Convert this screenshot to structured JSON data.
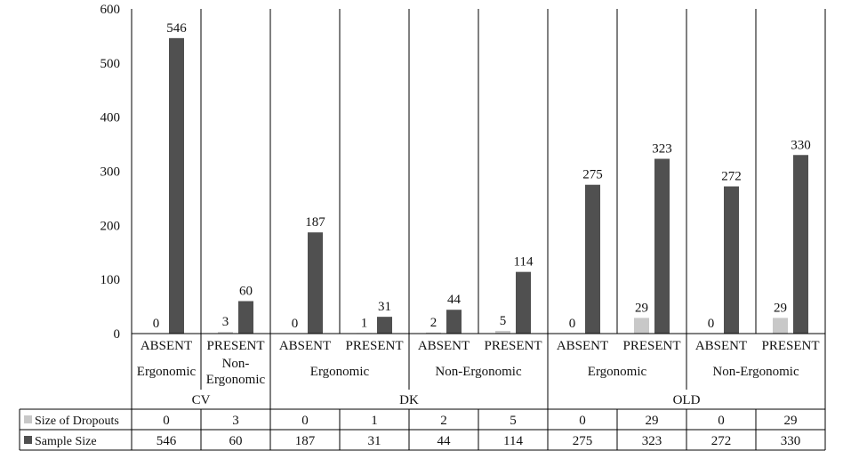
{
  "chart_data": {
    "type": "bar",
    "ylim": [
      0,
      600
    ],
    "yticks": [
      "0",
      "100",
      "200",
      "300",
      "400",
      "500",
      "600"
    ],
    "categories": [
      {
        "label": "ABSENT"
      },
      {
        "label": "PRESENT"
      },
      {
        "label": "ABSENT"
      },
      {
        "label": "PRESENT"
      },
      {
        "label": "ABSENT"
      },
      {
        "label": "PRESENT"
      },
      {
        "label": "ABSENT"
      },
      {
        "label": "PRESENT"
      },
      {
        "label": "ABSENT"
      },
      {
        "label": "PRESENT"
      }
    ],
    "groups_level2": [
      {
        "label": "Ergonomic",
        "span": 1
      },
      {
        "label": "Non-\nErgonomic",
        "span": 1
      },
      {
        "label": "Ergonomic",
        "span": 2
      },
      {
        "label": "Non-Ergonomic",
        "span": 2
      },
      {
        "label": "Ergonomic",
        "span": 2
      },
      {
        "label": "Non-Ergonomic",
        "span": 2
      }
    ],
    "groups_level1": [
      {
        "label": "CV",
        "span": 2
      },
      {
        "label": "DK",
        "span": 4
      },
      {
        "label": "OLD",
        "span": 4
      }
    ],
    "series": [
      {
        "name": "Size of Dropouts",
        "color": "#c8c8c8",
        "values": [
          0,
          3,
          0,
          1,
          2,
          5,
          0,
          29,
          0,
          29
        ]
      },
      {
        "name": "Sample Size",
        "color": "#505050",
        "values": [
          546,
          60,
          187,
          31,
          44,
          114,
          275,
          323,
          272,
          330
        ]
      }
    ],
    "data_labels": true,
    "data_table": true,
    "grid": false
  }
}
